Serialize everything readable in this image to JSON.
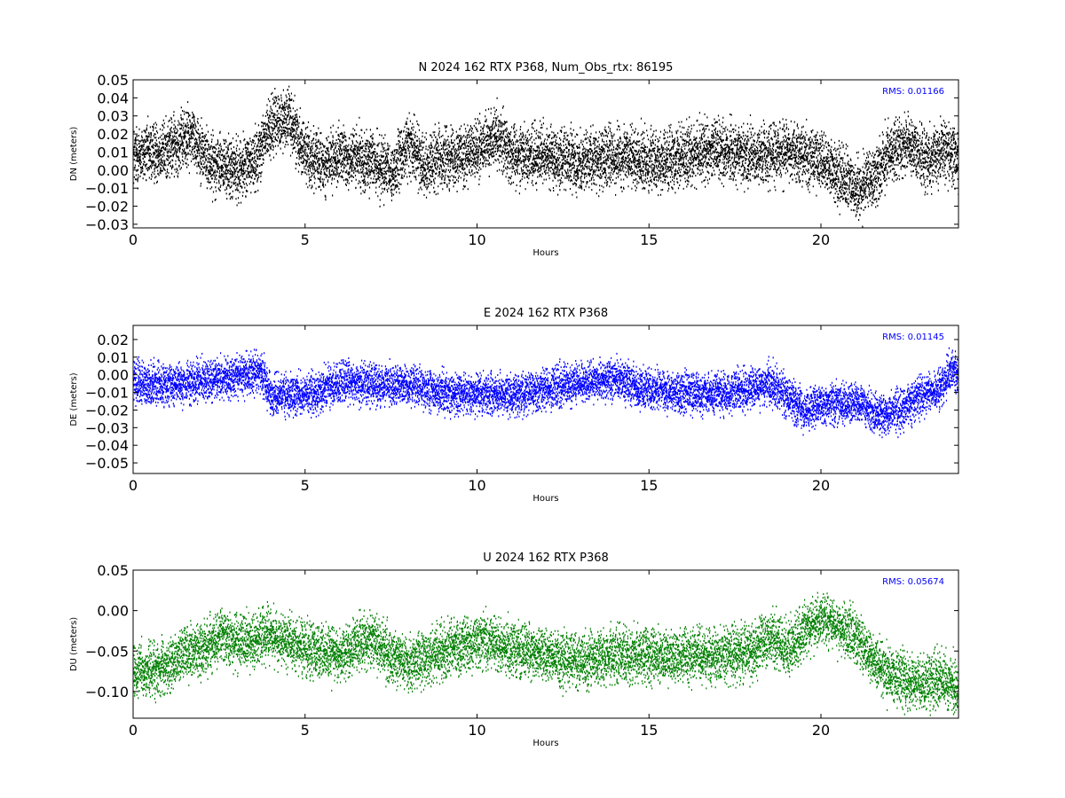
{
  "chart_data": [
    {
      "type": "scatter",
      "title": "N 2024 162 RTX  P368, Num_Obs_rtx: 86195",
      "xlabel": "Hours",
      "ylabel": "DN (meters)",
      "xlim": [
        0,
        24
      ],
      "ylim": [
        -0.032,
        0.05
      ],
      "xticks": [
        "0",
        "5",
        "10",
        "15",
        "20"
      ],
      "yticks": [
        "−0.03",
        "−0.02",
        "−0.01",
        "0.00",
        "0.01",
        "0.02",
        "0.03",
        "0.04",
        "0.05"
      ],
      "yticks_values": [
        -0.03,
        -0.02,
        -0.01,
        0.0,
        0.01,
        0.02,
        0.03,
        0.04,
        0.05
      ],
      "rms_label": "RMS:  0.01166",
      "color": "#000000",
      "noise": 0.008,
      "trend": [
        [
          0,
          0.008
        ],
        [
          1,
          0.012
        ],
        [
          1.7,
          0.02
        ],
        [
          2.2,
          0.005
        ],
        [
          3,
          0.0
        ],
        [
          3.5,
          0.005
        ],
        [
          4,
          0.025
        ],
        [
          4.5,
          0.03
        ],
        [
          5,
          0.01
        ],
        [
          5.5,
          0.003
        ],
        [
          6,
          0.008
        ],
        [
          7,
          0.005
        ],
        [
          7.5,
          -0.002
        ],
        [
          8,
          0.015
        ],
        [
          8.5,
          0.003
        ],
        [
          9,
          0.008
        ],
        [
          10,
          0.01
        ],
        [
          10.6,
          0.02
        ],
        [
          11,
          0.01
        ],
        [
          12,
          0.008
        ],
        [
          13,
          0.005
        ],
        [
          14,
          0.008
        ],
        [
          15,
          0.005
        ],
        [
          16,
          0.008
        ],
        [
          17,
          0.012
        ],
        [
          18,
          0.008
        ],
        [
          19,
          0.012
        ],
        [
          20,
          0.006
        ],
        [
          21,
          -0.01
        ],
        [
          21.5,
          -0.005
        ],
        [
          22,
          0.01
        ],
        [
          22.5,
          0.015
        ],
        [
          23,
          0.006
        ],
        [
          23.5,
          0.012
        ],
        [
          24,
          0.005
        ]
      ]
    },
    {
      "type": "scatter",
      "title": "E 2024 162 RTX  P368",
      "xlabel": "Hours",
      "ylabel": "DE (meters)",
      "xlim": [
        0,
        24
      ],
      "ylim": [
        -0.056,
        0.028
      ],
      "xticks": [
        "0",
        "5",
        "10",
        "15",
        "20"
      ],
      "yticks": [
        "−0.05",
        "−0.04",
        "−0.03",
        "−0.02",
        "−0.01",
        "0.00",
        "0.01",
        "0.02"
      ],
      "yticks_values": [
        -0.05,
        -0.04,
        -0.03,
        -0.02,
        -0.01,
        0.0,
        0.01,
        0.02
      ],
      "rms_label": "RMS:  0.01145",
      "color": "#0000ff",
      "noise": 0.0055,
      "trend": [
        [
          0,
          -0.004
        ],
        [
          1,
          -0.006
        ],
        [
          2,
          -0.003
        ],
        [
          3,
          0.0
        ],
        [
          3.7,
          0.002
        ],
        [
          4,
          -0.012
        ],
        [
          5,
          -0.01
        ],
        [
          5.5,
          -0.008
        ],
        [
          6,
          -0.004
        ],
        [
          7,
          -0.005
        ],
        [
          8,
          -0.006
        ],
        [
          9,
          -0.01
        ],
        [
          10,
          -0.01
        ],
        [
          11,
          -0.012
        ],
        [
          12,
          -0.008
        ],
        [
          13,
          -0.004
        ],
        [
          14,
          -0.002
        ],
        [
          15,
          -0.008
        ],
        [
          16,
          -0.01
        ],
        [
          17,
          -0.01
        ],
        [
          18,
          -0.008
        ],
        [
          18.5,
          -0.004
        ],
        [
          19,
          -0.012
        ],
        [
          19.5,
          -0.02
        ],
        [
          20,
          -0.016
        ],
        [
          21,
          -0.015
        ],
        [
          21.5,
          -0.022
        ],
        [
          22,
          -0.022
        ],
        [
          22.5,
          -0.018
        ],
        [
          23,
          -0.01
        ],
        [
          23.5,
          -0.006
        ],
        [
          23.8,
          0.004
        ],
        [
          24,
          0.0
        ]
      ]
    },
    {
      "type": "scatter",
      "title": "U 2024 162 RTX  P368",
      "xlabel": "Hours",
      "ylabel": "DU (meters)",
      "xlim": [
        0,
        24
      ],
      "ylim": [
        -0.133,
        0.05
      ],
      "xticks": [
        "0",
        "5",
        "10",
        "15",
        "20"
      ],
      "yticks": [
        "−0.10",
        "−0.05",
        "0.00",
        "0.05"
      ],
      "yticks_values": [
        -0.1,
        -0.05,
        0.0,
        0.05
      ],
      "rms_label": "RMS:  0.05674",
      "color": "#008000",
      "noise": 0.016,
      "trend": [
        [
          0,
          -0.075
        ],
        [
          1,
          -0.07
        ],
        [
          1.5,
          -0.05
        ],
        [
          2,
          -0.05
        ],
        [
          2.5,
          -0.03
        ],
        [
          3,
          -0.04
        ],
        [
          4,
          -0.03
        ],
        [
          5,
          -0.045
        ],
        [
          6,
          -0.055
        ],
        [
          6.5,
          -0.04
        ],
        [
          7,
          -0.035
        ],
        [
          7.5,
          -0.055
        ],
        [
          8,
          -0.065
        ],
        [
          9,
          -0.05
        ],
        [
          10,
          -0.035
        ],
        [
          11,
          -0.045
        ],
        [
          12,
          -0.055
        ],
        [
          13,
          -0.06
        ],
        [
          14,
          -0.055
        ],
        [
          15,
          -0.055
        ],
        [
          16,
          -0.055
        ],
        [
          17,
          -0.055
        ],
        [
          18,
          -0.05
        ],
        [
          18.5,
          -0.03
        ],
        [
          19,
          -0.05
        ],
        [
          19.5,
          -0.025
        ],
        [
          20,
          -0.01
        ],
        [
          21,
          -0.03
        ],
        [
          21.5,
          -0.06
        ],
        [
          22,
          -0.08
        ],
        [
          23,
          -0.09
        ],
        [
          23.5,
          -0.08
        ],
        [
          24,
          -0.095
        ]
      ]
    }
  ]
}
